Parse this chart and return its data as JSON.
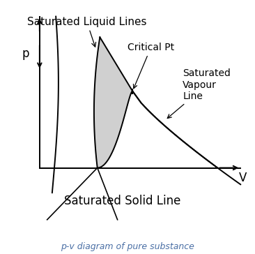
{
  "title": "p-v diagram of pure substance",
  "title_color": "#4a6fa5",
  "title_fontsize": 9,
  "title_style": "italic",
  "bg_color": "#ffffff",
  "line_color": "#000000",
  "fill_color": "#aaaaaa",
  "fill_alpha": 0.55,
  "labels": {
    "sat_liquid": "Saturated Liquid Lines",
    "critical_pt": "Critical Pt",
    "sat_vapour": "Saturated\nVapour\nLine",
    "sat_solid": "Saturated Solid Line",
    "p_axis": "p",
    "v_axis": "V"
  },
  "label_fontsizes": {
    "sat_liquid": 11,
    "critical_pt": 10,
    "sat_vapour": 10,
    "sat_solid": 12,
    "axis": 12
  }
}
